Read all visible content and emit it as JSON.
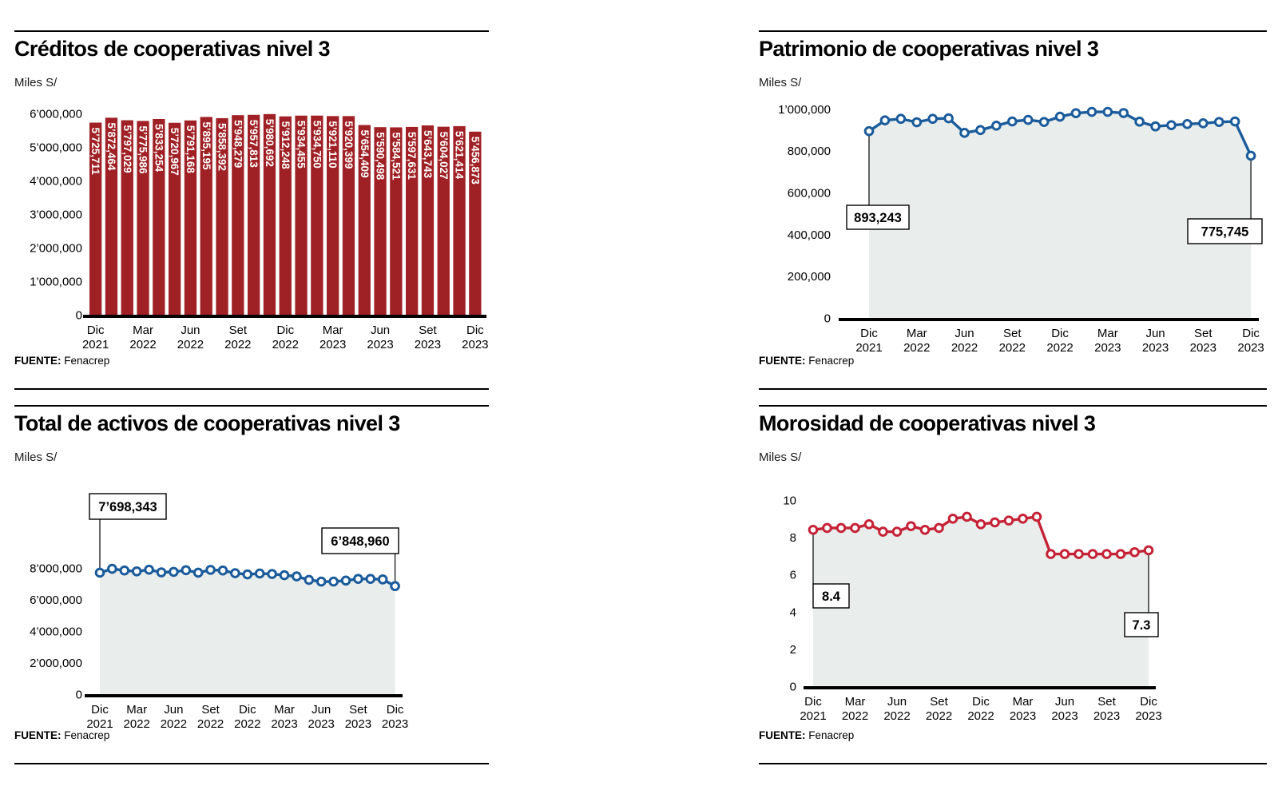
{
  "chart_data": [
    {
      "id": "creditos",
      "type": "bar",
      "title": "Créditos de cooperativas nivel 3",
      "unit_label": "Miles S/",
      "source_label": "FUENTE:",
      "source": "Fenacrep",
      "bar_color": "#a02125",
      "label_color": "#ffffff",
      "ylim": [
        0,
        6250000
      ],
      "grid": false,
      "legend": "none",
      "y_ticks": [
        {
          "label": "6’000,000",
          "value": 6000000
        },
        {
          "label": "5’000,000",
          "value": 5000000
        },
        {
          "label": "4’000,000",
          "value": 4000000
        },
        {
          "label": "3’000,000",
          "value": 3000000
        },
        {
          "label": "2’000,000",
          "value": 2000000
        },
        {
          "label": "1’000,000",
          "value": 1000000
        },
        {
          "label": "0",
          "value": 0
        }
      ],
      "x_tick_labels": [
        [
          "Dic",
          "2021"
        ],
        [
          "Mar",
          "2022"
        ],
        [
          "Jun",
          "2022"
        ],
        [
          "Set",
          "2022"
        ],
        [
          "Dic",
          "2022"
        ],
        [
          "Mar",
          "2023"
        ],
        [
          "Jun",
          "2023"
        ],
        [
          "Set",
          "2023"
        ],
        [
          "Dic",
          "2023"
        ]
      ],
      "values": [
        5725711,
        5872464,
        5797029,
        5775986,
        5833254,
        5720967,
        5791168,
        5895195,
        5858392,
        5948279,
        5957813,
        5980692,
        5912248,
        5934455,
        5934750,
        5921110,
        5920399,
        5654409,
        5590498,
        5584521,
        5597631,
        5643743,
        5604027,
        5621414,
        5456873
      ],
      "bar_labels": [
        "5’725,711",
        "5’872,464",
        "5’797,029",
        "5’775,986",
        "5’833,254",
        "5’720,967",
        "5’791,168",
        "5’895,195",
        "5’858,392",
        "5’948,279",
        "5’957,813",
        "5’980,692",
        "5’912,248",
        "5’934,455",
        "5’934,750",
        "5’921,110",
        "5’920,399",
        "5’654,409",
        "5’590,498",
        "5’584,521",
        "5’597,631",
        "5’643,743",
        "5’604,027",
        "5’621,414",
        "5’456,873"
      ]
    },
    {
      "id": "patrimonio",
      "type": "line",
      "title": "Patrimonio de cooperativas nivel 3",
      "unit_label": "Miles S/",
      "source_label": "FUENTE:",
      "source": "Fenacrep",
      "line_color": "#1a5b9b",
      "area_fill": "#e9edec",
      "ylim": [
        0,
        1040000
      ],
      "grid": false,
      "legend": "none",
      "y_ticks": [
        {
          "label": "1’000,000",
          "value": 1000000
        },
        {
          "label": "800,000",
          "value": 800000
        },
        {
          "label": "600,000",
          "value": 600000
        },
        {
          "label": "400,000",
          "value": 400000
        },
        {
          "label": "200,000",
          "value": 200000
        },
        {
          "label": "0",
          "value": 0
        }
      ],
      "x_tick_labels": [
        [
          "Dic",
          "2021"
        ],
        [
          "Mar",
          "2022"
        ],
        [
          "Jun",
          "2022"
        ],
        [
          "Set",
          "2022"
        ],
        [
          "Dic",
          "2022"
        ],
        [
          "Mar",
          "2023"
        ],
        [
          "Jun",
          "2023"
        ],
        [
          "Set",
          "2023"
        ],
        [
          "Dic",
          "2023"
        ]
      ],
      "values": [
        893243,
        944700,
        952300,
        936000,
        952300,
        955000,
        885100,
        898500,
        919500,
        939700,
        947400,
        937100,
        962600,
        979100,
        985600,
        985600,
        979900,
        938600,
        916000,
        921800,
        927100,
        930900,
        937100,
        939700,
        775745
      ],
      "callouts": [
        {
          "text": "893,243",
          "point_index": 0
        },
        {
          "text": "775,745",
          "point_index": 24
        }
      ]
    },
    {
      "id": "activos",
      "type": "line",
      "title": "Total de activos de cooperativas nivel 3",
      "unit_label": "Miles S/",
      "source_label": "FUENTE:",
      "source": "Fenacrep",
      "line_color": "#1a5b9b",
      "area_fill": "#e9edec",
      "ylim": [
        0,
        8400000
      ],
      "grid": false,
      "legend": "none",
      "y_ticks": [
        {
          "label": "8’000,000",
          "value": 8000000
        },
        {
          "label": "6’000,000",
          "value": 6000000
        },
        {
          "label": "4’000,000",
          "value": 4000000
        },
        {
          "label": "2’000,000",
          "value": 2000000
        },
        {
          "label": "0",
          "value": 0
        }
      ],
      "x_tick_labels": [
        [
          "Dic",
          "2021"
        ],
        [
          "Mar",
          "2022"
        ],
        [
          "Jun",
          "2022"
        ],
        [
          "Set",
          "2022"
        ],
        [
          "Dic",
          "2022"
        ],
        [
          "Mar",
          "2023"
        ],
        [
          "Jun",
          "2023"
        ],
        [
          "Set",
          "2023"
        ],
        [
          "Dic",
          "2023"
        ]
      ],
      "values": [
        7698343,
        7944000,
        7838000,
        7784000,
        7890000,
        7721000,
        7753000,
        7858000,
        7698000,
        7880000,
        7838000,
        7666000,
        7593000,
        7647000,
        7615000,
        7539000,
        7465000,
        7242000,
        7136000,
        7136000,
        7200000,
        7306000,
        7306000,
        7273000,
        6848960
      ],
      "callouts": [
        {
          "text": "7’698,343",
          "point_index": 0
        },
        {
          "text": "6’848,960",
          "point_index": 24
        }
      ]
    },
    {
      "id": "morosidad",
      "type": "line",
      "title": "Morosidad de cooperativas nivel 3",
      "unit_label": "Miles S/",
      "source_label": "FUENTE:",
      "source": "Fenacrep",
      "line_color": "#c52237",
      "area_fill": "#e9edec",
      "ylim": [
        0,
        10
      ],
      "grid": false,
      "legend": "none",
      "y_ticks": [
        {
          "label": "10",
          "value": 10
        },
        {
          "label": "8",
          "value": 8
        },
        {
          "label": "6",
          "value": 6
        },
        {
          "label": "4",
          "value": 4
        },
        {
          "label": "2",
          "value": 2
        },
        {
          "label": "0",
          "value": 0
        }
      ],
      "x_tick_labels": [
        [
          "Dic",
          "2021"
        ],
        [
          "Mar",
          "2022"
        ],
        [
          "Jun",
          "2022"
        ],
        [
          "Set",
          "2022"
        ],
        [
          "Dic",
          "2022"
        ],
        [
          "Mar",
          "2023"
        ],
        [
          "Jun",
          "2023"
        ],
        [
          "Set",
          "2023"
        ],
        [
          "Dic",
          "2023"
        ]
      ],
      "values": [
        8.4,
        8.5,
        8.5,
        8.5,
        8.7,
        8.3,
        8.3,
        8.6,
        8.4,
        8.5,
        9.0,
        9.1,
        8.7,
        8.8,
        8.9,
        9.0,
        9.1,
        7.1,
        7.1,
        7.1,
        7.1,
        7.1,
        7.1,
        7.2,
        7.3
      ],
      "callouts": [
        {
          "text": "8.4",
          "point_index": 0
        },
        {
          "text": "7.3",
          "point_index": 24
        }
      ]
    }
  ]
}
